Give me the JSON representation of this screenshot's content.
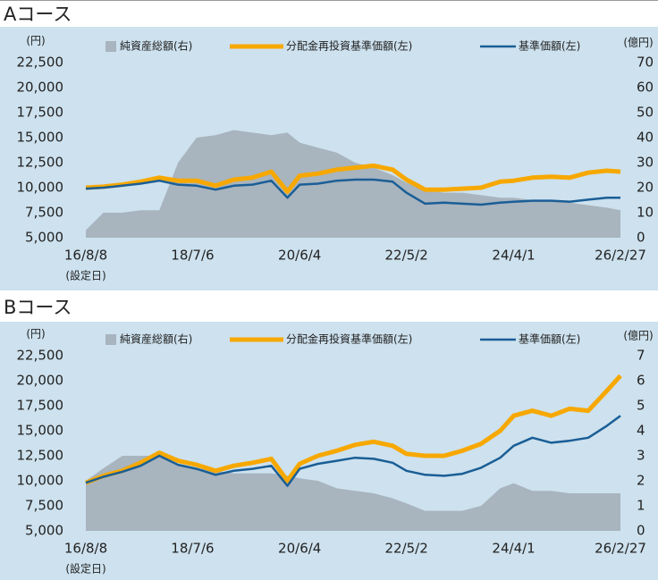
{
  "chart_data": [
    {
      "type": "line",
      "title": "Aコース",
      "y_label": "(円)",
      "y2_label": "(億円)",
      "x_annotation": "(設定日)",
      "x": [
        "16/8/8",
        "16/12/1",
        "17/4/3",
        "17/8/1",
        "17/12/1",
        "18/4/2",
        "18/8/1",
        "18/12/3",
        "19/4/1",
        "19/8/1",
        "19/12/2",
        "20/3/16",
        "20/6/4",
        "20/10/1",
        "21/2/1",
        "21/6/1",
        "21/10/1",
        "22/2/1",
        "22/5/2",
        "22/9/1",
        "23/1/4",
        "23/5/1",
        "23/9/1",
        "24/1/4",
        "24/4/1",
        "24/8/1",
        "24/12/2",
        "25/4/1",
        "25/8/1",
        "25/12/1",
        "26/2/27"
      ],
      "xlim": [
        "16/8/8",
        "26/2/27"
      ],
      "xticks": [
        "16/8/8",
        "18/7/6",
        "20/6/4",
        "22/5/2",
        "24/4/1",
        "26/2/27"
      ],
      "ylim": [
        5000,
        22500
      ],
      "yticks": [
        {
          "value": 5000,
          "label": "5,000"
        },
        {
          "value": 7500,
          "label": "7,500"
        },
        {
          "value": 10000,
          "label": "10,000"
        },
        {
          "value": 12500,
          "label": "12,500"
        },
        {
          "value": 15000,
          "label": "15,000"
        },
        {
          "value": 17500,
          "label": "17,500"
        },
        {
          "value": 20000,
          "label": "20,000"
        },
        {
          "value": 22500,
          "label": "22,500"
        }
      ],
      "y2lim": [
        0,
        70
      ],
      "y2ticks": [
        0,
        10,
        20,
        30,
        40,
        50,
        60,
        70
      ],
      "series": [
        {
          "name": "純資産総額(右)",
          "kind": "area",
          "axis": "y2",
          "color": "#a8b4be",
          "values": [
            3,
            10,
            10,
            11,
            11,
            30,
            40,
            41,
            43,
            42,
            41,
            42,
            38,
            36,
            34,
            30,
            28,
            25,
            22,
            19,
            18,
            18,
            17,
            16,
            16,
            15,
            15,
            14,
            13,
            12,
            11
          ]
        },
        {
          "name": "分配金再投資基準価額(左)",
          "kind": "line",
          "color": "#f7a800",
          "values": [
            10000,
            10100,
            10300,
            10600,
            11000,
            10700,
            10700,
            10200,
            10800,
            11000,
            11600,
            9600,
            11200,
            11400,
            11800,
            12000,
            12200,
            11800,
            10800,
            9800,
            9800,
            9900,
            10000,
            10600,
            10700,
            11000,
            11100,
            11000,
            11500,
            11700,
            11600
          ]
        },
        {
          "name": "基準価額(左)",
          "kind": "line",
          "color": "#1a5e96",
          "values": [
            9900,
            10000,
            10200,
            10400,
            10700,
            10300,
            10200,
            9800,
            10200,
            10300,
            10700,
            9000,
            10300,
            10400,
            10700,
            10800,
            10800,
            10600,
            9500,
            8400,
            8500,
            8400,
            8300,
            8500,
            8600,
            8700,
            8700,
            8600,
            8800,
            9000,
            9000
          ]
        }
      ]
    },
    {
      "type": "line",
      "title": "Bコース",
      "y_label": "(円)",
      "y2_label": "(億円)",
      "x_annotation": "(設定日)",
      "x": [
        "16/8/8",
        "16/12/1",
        "17/4/3",
        "17/8/1",
        "17/12/1",
        "18/4/2",
        "18/8/1",
        "18/12/3",
        "19/4/1",
        "19/8/1",
        "19/12/2",
        "20/3/16",
        "20/6/4",
        "20/10/1",
        "21/2/1",
        "21/6/1",
        "21/10/1",
        "22/2/1",
        "22/5/2",
        "22/9/1",
        "23/1/4",
        "23/5/1",
        "23/9/1",
        "24/1/4",
        "24/4/1",
        "24/8/1",
        "24/12/2",
        "25/4/1",
        "25/8/1",
        "25/12/1",
        "26/2/27"
      ],
      "xlim": [
        "16/8/8",
        "26/2/27"
      ],
      "xticks": [
        "16/8/8",
        "18/7/6",
        "20/6/4",
        "22/5/2",
        "24/4/1",
        "26/2/27"
      ],
      "ylim": [
        5000,
        22500
      ],
      "yticks": [
        {
          "value": 5000,
          "label": "5,000"
        },
        {
          "value": 7500,
          "label": "7,500"
        },
        {
          "value": 10000,
          "label": "10,000"
        },
        {
          "value": 12500,
          "label": "12,500"
        },
        {
          "value": 15000,
          "label": "15,000"
        },
        {
          "value": 17500,
          "label": "17,500"
        },
        {
          "value": 20000,
          "label": "20,000"
        },
        {
          "value": 22500,
          "label": "22,500"
        }
      ],
      "y2lim": [
        0,
        7
      ],
      "y2ticks": [
        0,
        1,
        2,
        3,
        4,
        5,
        6,
        7
      ],
      "series": [
        {
          "name": "純資産総額(右)",
          "kind": "area",
          "axis": "y2",
          "color": "#a8b4be",
          "values": [
            2,
            2.5,
            3,
            3,
            3,
            2.6,
            2.5,
            2.4,
            2.3,
            2.3,
            2.3,
            2.2,
            2.1,
            2,
            1.7,
            1.6,
            1.5,
            1.3,
            1.1,
            0.8,
            0.8,
            0.8,
            1,
            1.7,
            1.9,
            1.6,
            1.6,
            1.5,
            1.5,
            1.5,
            1.5
          ]
        },
        {
          "name": "分配金再投資基準価額(左)",
          "kind": "line",
          "color": "#f7a800",
          "values": [
            9800,
            10500,
            11000,
            11800,
            12800,
            12000,
            11600,
            11000,
            11500,
            11800,
            12200,
            10000,
            11700,
            12500,
            13000,
            13600,
            13900,
            13500,
            12700,
            12500,
            12500,
            13000,
            13700,
            15000,
            16500,
            17000,
            16500,
            17200,
            17000,
            19000,
            20500
          ]
        },
        {
          "name": "基準価額(左)",
          "kind": "line",
          "color": "#1a5e96",
          "values": [
            9800,
            10400,
            10900,
            11500,
            12500,
            11600,
            11200,
            10600,
            11000,
            11200,
            11500,
            9500,
            11200,
            11700,
            12000,
            12300,
            12200,
            11800,
            11000,
            10600,
            10500,
            10700,
            11300,
            12300,
            13500,
            14300,
            13800,
            14000,
            14300,
            15500,
            16500
          ]
        }
      ]
    }
  ]
}
